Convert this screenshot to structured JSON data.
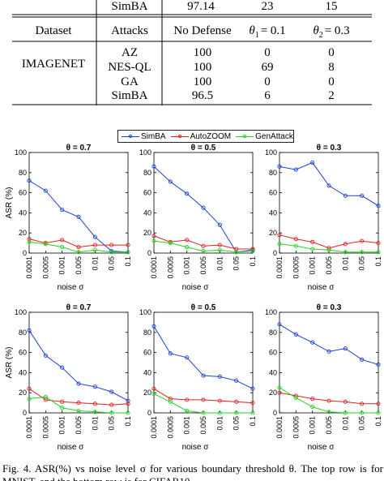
{
  "table": {
    "top_row": [
      "SimBA",
      "97.14",
      "23",
      "15"
    ],
    "headers": [
      "Dataset",
      "Attacks",
      "No Defense",
      "θ",
      "1",
      "= 0.1",
      "θ",
      "2",
      "= 0.3"
    ],
    "dataset": "IMAGENET",
    "rows": [
      [
        "AZ",
        "100",
        "0",
        "0"
      ],
      [
        "NES-QL",
        "100",
        "69",
        "8"
      ],
      [
        "GA",
        "100",
        "0",
        "0"
      ],
      [
        "SimBA",
        "96.5",
        "6",
        "2"
      ]
    ]
  },
  "legend": {
    "items": [
      {
        "label": "SimBA",
        "color": "#1f3fd6"
      },
      {
        "label": "AutoZOOM",
        "color": "#e02020"
      },
      {
        "label": "GenAttack",
        "color": "#22d422"
      }
    ]
  },
  "caption": "Fig. 4.  ASR(%) vs noise level σ for various boundary threshold θ. The top row is for MNIST, and the bottom row is for CIFAR10.",
  "chart_data": [
    {
      "type": "line",
      "title": "θ = 0.7",
      "xlabel": "noise σ",
      "ylabel": "ASR (%)",
      "ylim": [
        0,
        100
      ],
      "yticks": [
        "0",
        "20",
        "40",
        "60",
        "80",
        "100"
      ],
      "categories": [
        "0.0001",
        "0.0005",
        "0.001",
        "0.005",
        "0.01",
        "0.05",
        "0.1"
      ],
      "series": [
        {
          "name": "SimBA",
          "values": [
            72,
            62,
            43,
            36,
            16,
            2,
            1
          ]
        },
        {
          "name": "AutoZOOM",
          "values": [
            14,
            10,
            13,
            6,
            8,
            8,
            8
          ]
        },
        {
          "name": "GenAttack",
          "values": [
            11,
            9,
            6,
            1,
            3,
            1,
            1
          ]
        }
      ]
    },
    {
      "type": "line",
      "title": "θ = 0.5",
      "xlabel": "noise σ",
      "ylabel": "",
      "ylim": [
        0,
        100
      ],
      "yticks": [
        "0",
        "20",
        "40",
        "60",
        "80",
        "100"
      ],
      "categories": [
        "0.0001",
        "0.0005",
        "0.001",
        "0.005",
        "0.01",
        "0.05",
        "0.1"
      ],
      "series": [
        {
          "name": "SimBA",
          "values": [
            86,
            71,
            59,
            45,
            28,
            1,
            3
          ]
        },
        {
          "name": "AutoZOOM",
          "values": [
            17,
            11,
            13,
            7,
            8,
            4,
            4
          ]
        },
        {
          "name": "GenAttack",
          "values": [
            12,
            10,
            6,
            2,
            3,
            1,
            2
          ]
        }
      ]
    },
    {
      "type": "line",
      "title": "θ = 0.3",
      "xlabel": "noise σ",
      "ylabel": "",
      "ylim": [
        0,
        100
      ],
      "yticks": [
        "0",
        "20",
        "40",
        "60",
        "80",
        "100"
      ],
      "categories": [
        "0.0001",
        "0.0005",
        "0.001",
        "0.005",
        "0.01",
        "0.05",
        "0.1"
      ],
      "series": [
        {
          "name": "SimBA",
          "values": [
            86,
            83,
            90,
            67,
            57,
            57,
            47
          ]
        },
        {
          "name": "AutoZOOM",
          "values": [
            18,
            14,
            11,
            5,
            9,
            12,
            10
          ]
        },
        {
          "name": "GenAttack",
          "values": [
            9,
            7,
            4,
            3,
            1,
            1,
            1
          ]
        }
      ]
    },
    {
      "type": "line",
      "title": "θ = 0.7",
      "xlabel": "noise σ",
      "ylabel": "ASR (%)",
      "ylim": [
        0,
        100
      ],
      "yticks": [
        "0",
        "20",
        "40",
        "60",
        "80",
        "100"
      ],
      "categories": [
        "0.0001",
        "0.0005",
        "0.001",
        "0.005",
        "0.01",
        "0.05",
        "0.1"
      ],
      "series": [
        {
          "name": "SimBA",
          "values": [
            82,
            57,
            45,
            29,
            26,
            21,
            12
          ]
        },
        {
          "name": "AutoZOOM",
          "values": [
            24,
            13,
            11,
            10,
            9,
            8,
            9
          ]
        },
        {
          "name": "GenAttack",
          "values": [
            14,
            16,
            5,
            2,
            1,
            0,
            0
          ]
        }
      ]
    },
    {
      "type": "line",
      "title": "θ = 0.5",
      "xlabel": "noise σ",
      "ylabel": "",
      "ylim": [
        0,
        100
      ],
      "yticks": [
        "0",
        "20",
        "40",
        "60",
        "80",
        "100"
      ],
      "categories": [
        "0.0001",
        "0.0005",
        "0.001",
        "0.005",
        "0.01",
        "0.05",
        "0.1"
      ],
      "series": [
        {
          "name": "SimBA",
          "values": [
            86,
            59,
            55,
            37,
            36,
            32,
            24
          ]
        },
        {
          "name": "AutoZOOM",
          "values": [
            24,
            14,
            13,
            13,
            12,
            11,
            10
          ]
        },
        {
          "name": "GenAttack",
          "values": [
            19,
            11,
            2,
            0,
            0,
            0,
            0
          ]
        }
      ]
    },
    {
      "type": "line",
      "title": "θ = 0.3",
      "xlabel": "noise σ",
      "ylabel": "",
      "ylim": [
        0,
        100
      ],
      "yticks": [
        "0",
        "20",
        "40",
        "60",
        "80",
        "100"
      ],
      "categories": [
        "0.0001",
        "0.0005",
        "0.001",
        "0.005",
        "0.01",
        "0.05",
        "0.1"
      ],
      "series": [
        {
          "name": "SimBA",
          "values": [
            88,
            78,
            70,
            61,
            64,
            53,
            48
          ]
        },
        {
          "name": "AutoZOOM",
          "values": [
            20,
            17,
            14,
            12,
            11,
            9,
            9
          ]
        },
        {
          "name": "GenAttack",
          "values": [
            25,
            15,
            6,
            1,
            0,
            0,
            0
          ]
        }
      ]
    }
  ]
}
